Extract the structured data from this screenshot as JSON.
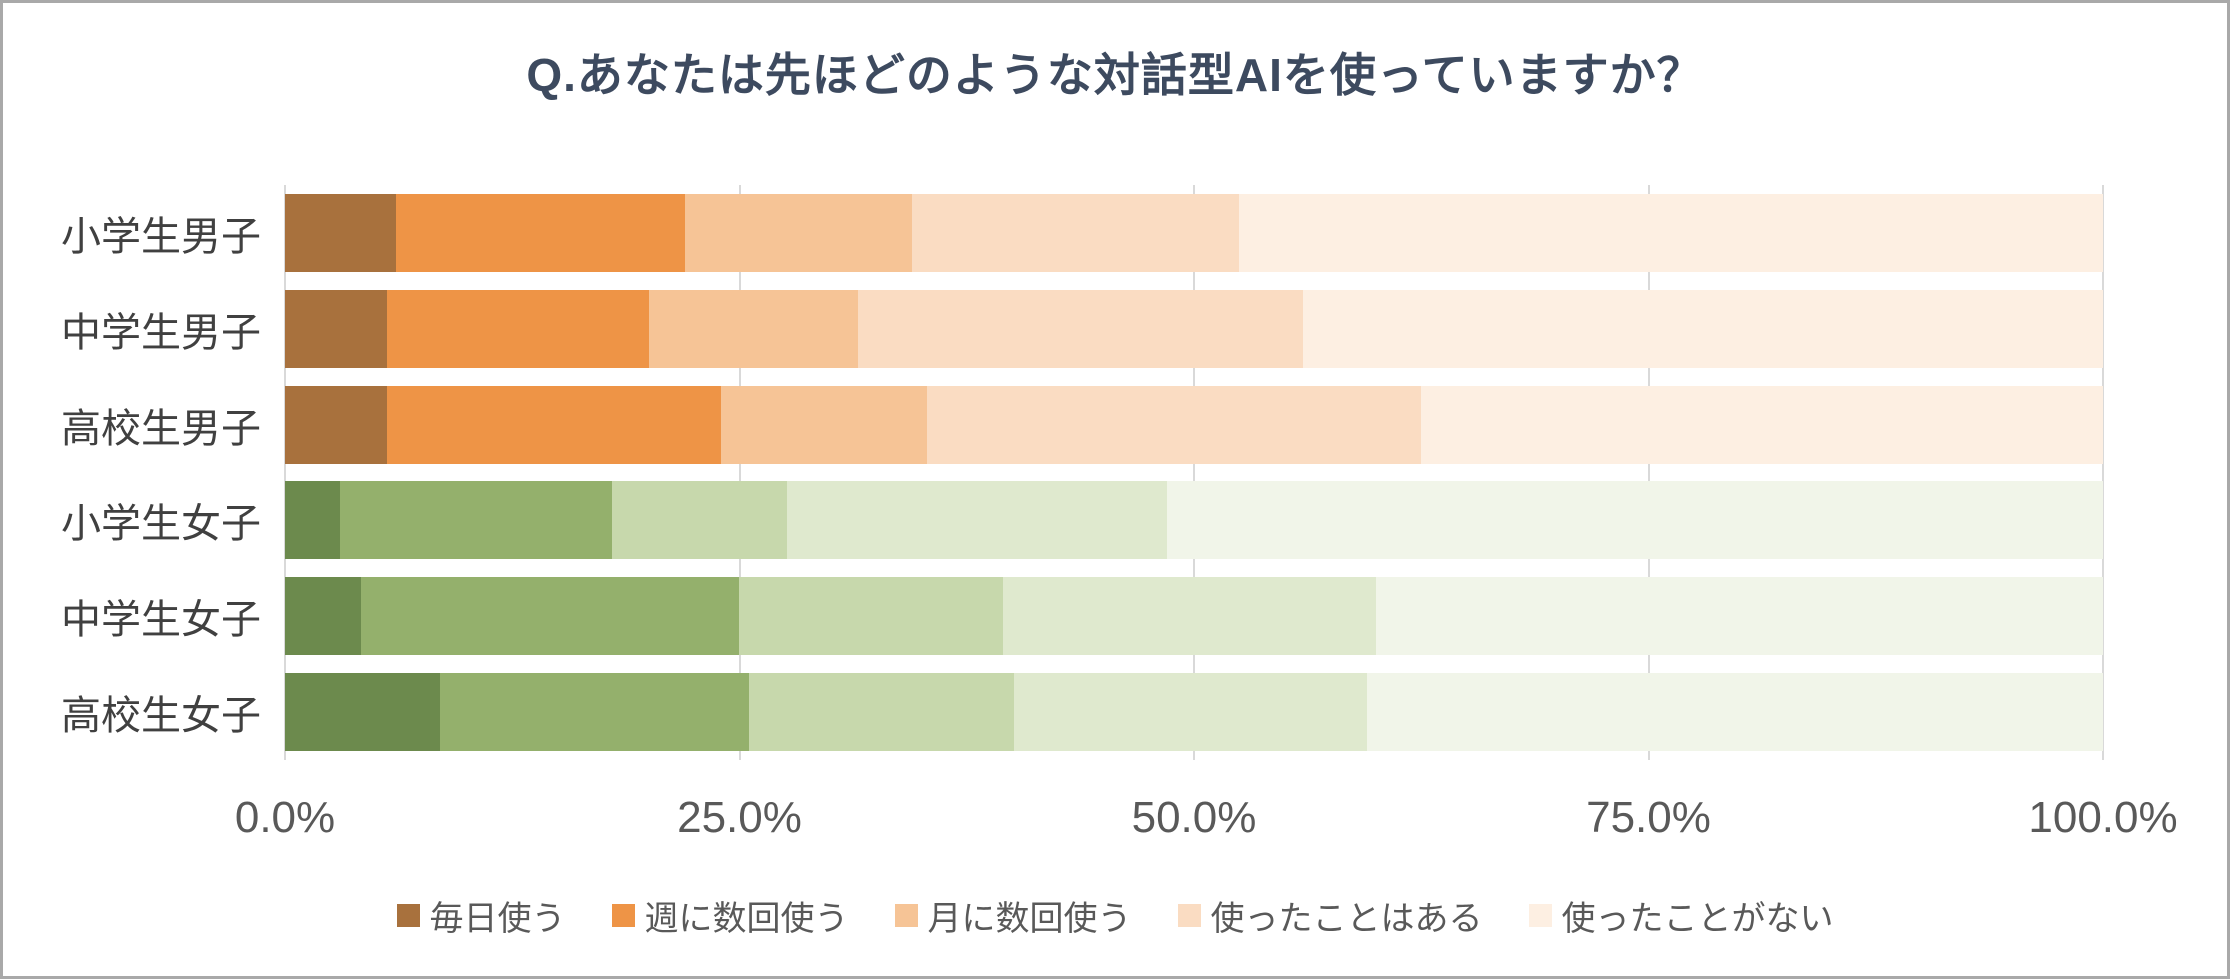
{
  "chart_data": {
    "type": "bar",
    "stacked": true,
    "orientation": "horizontal",
    "title": "Q.あなたは先ほどのような対話型AIを使っていますか？",
    "categories": [
      "小学生男子",
      "中学生男子",
      "高校生男子",
      "小学生女子",
      "中学生女子",
      "高校生女子"
    ],
    "series": [
      {
        "name": "毎日使う",
        "values": [
          6.1,
          5.6,
          5.6,
          3.0,
          4.2,
          8.5
        ]
      },
      {
        "name": "週に数回使う",
        "values": [
          15.9,
          14.4,
          18.4,
          15.0,
          20.8,
          17.0
        ]
      },
      {
        "name": "月に数回使う",
        "values": [
          12.5,
          11.5,
          11.3,
          9.6,
          14.5,
          14.6
        ]
      },
      {
        "name": "使ったことはある",
        "values": [
          18.0,
          24.5,
          27.2,
          20.9,
          20.5,
          19.4
        ]
      },
      {
        "name": "使ったことがない",
        "values": [
          47.5,
          44.0,
          37.5,
          51.5,
          40.0,
          40.5
        ]
      }
    ],
    "xticks": [
      "0.0%",
      "25.0%",
      "50.0%",
      "75.0%",
      "100.0%"
    ],
    "xlim": [
      0,
      100
    ],
    "grid": true,
    "legend_position": "bottom",
    "palettes": {
      "boys": [
        "#a8713d",
        "#ee9446",
        "#f6c496",
        "#fadcc2",
        "#fdefe2"
      ],
      "girls": [
        "#6c8a4d",
        "#94b06c",
        "#c7d8ac",
        "#dfe9ce",
        "#f1f5e9"
      ]
    },
    "row_palettes": [
      "boys",
      "boys",
      "boys",
      "girls",
      "girls",
      "girls"
    ],
    "colors": {
      "title": "#3d4a5f",
      "axis_text": "#595959",
      "category_text": "#404040",
      "gridline": "#d9d9d9",
      "frame_border": "#a9a9a9"
    }
  }
}
